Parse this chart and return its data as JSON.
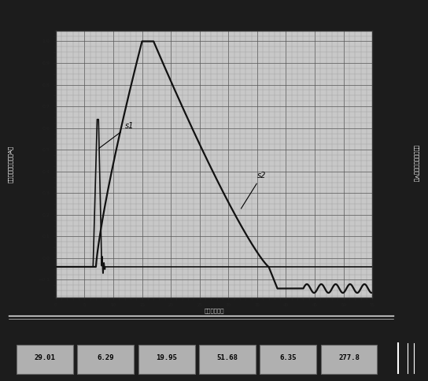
{
  "bg_color": "#1c1c1c",
  "plot_bg_color": "#c8c8c8",
  "grid_major_color": "#555555",
  "grid_minor_color": "#888888",
  "line_color": "#111111",
  "ylabel_left": "电流制动量（单位：A）",
  "ylabel_right": "电压制动量（单位：V）",
  "xlabel": "时间（单位）",
  "xlim": [
    0,
    55
  ],
  "ylim": [
    -0.18,
    1.05
  ],
  "s1_label": "s1",
  "s2_label": "s2",
  "status_values": [
    "29.01",
    "6.29",
    "19.95",
    "51.68",
    "6.35",
    "277.8"
  ]
}
